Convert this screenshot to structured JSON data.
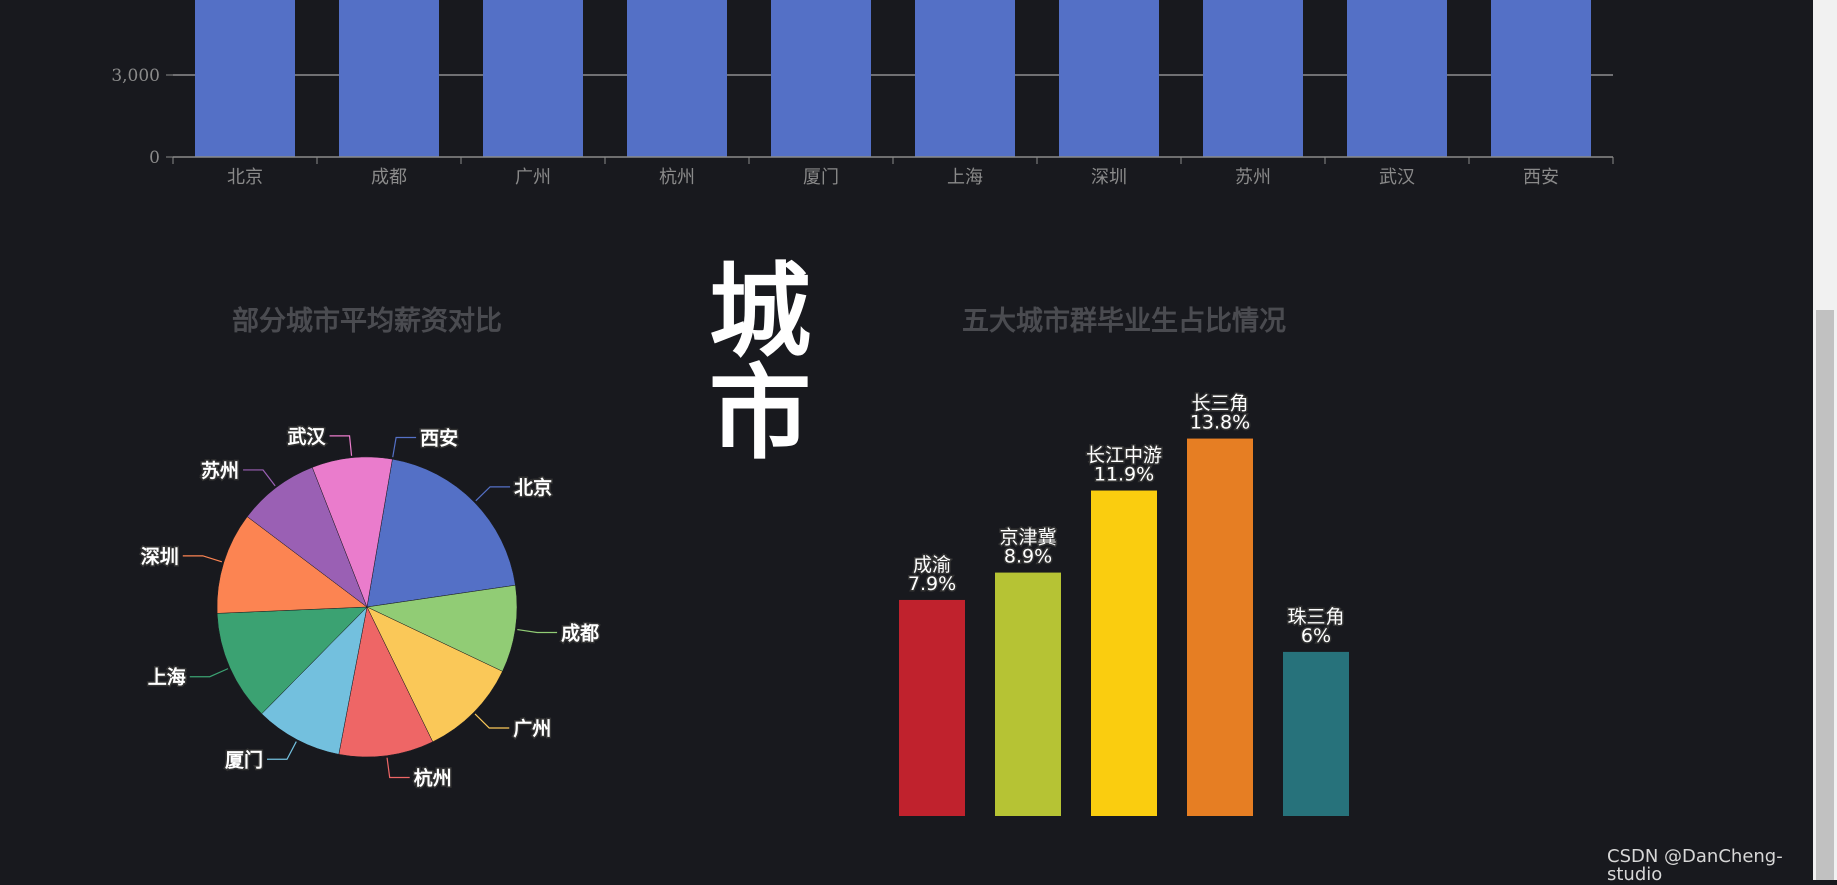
{
  "page": {
    "heading": "城市",
    "watermark": "CSDN @DanCheng-studio"
  },
  "chart_data": [
    {
      "type": "bar",
      "title": "",
      "categories": [
        "北京",
        "成都",
        "广州",
        "杭州",
        "厦门",
        "上海",
        "深圳",
        "苏州",
        "武汉",
        "西安"
      ],
      "visible_y_ticks": [
        0,
        3000
      ],
      "visible_y_tick_labels": [
        "0",
        "3,000"
      ],
      "color": "#5470c6",
      "note_cropped_top": true
    },
    {
      "type": "pie",
      "title": "部分城市平均薪资对比",
      "labels": [
        "北京",
        "成都",
        "广州",
        "杭州",
        "厦门",
        "上海",
        "深圳",
        "苏州",
        "武汉",
        "西安"
      ],
      "values": [
        16.4,
        7.7,
        8.8,
        8.4,
        7.7,
        9.8,
        9.0,
        7.2,
        7.1,
        0
      ],
      "colors": [
        "#5470c6",
        "#91cc75",
        "#fac858",
        "#ee6666",
        "#73c0de",
        "#3ba272",
        "#fc8452",
        "#9a60b4",
        "#ea7ccc",
        "#5470c6"
      ]
    },
    {
      "type": "bar",
      "title": "五大城市群毕业生占比情况",
      "categories": [
        "成渝",
        "京津冀",
        "长江中游",
        "长三角",
        "珠三角"
      ],
      "values": [
        7.9,
        8.9,
        11.9,
        13.8,
        6
      ],
      "value_labels": [
        "7.9%",
        "8.9%",
        "11.9%",
        "13.8%",
        "6%"
      ],
      "colors": [
        "#c0222d",
        "#b6c334",
        "#facd0f",
        "#e67e23",
        "#27727b"
      ]
    }
  ]
}
